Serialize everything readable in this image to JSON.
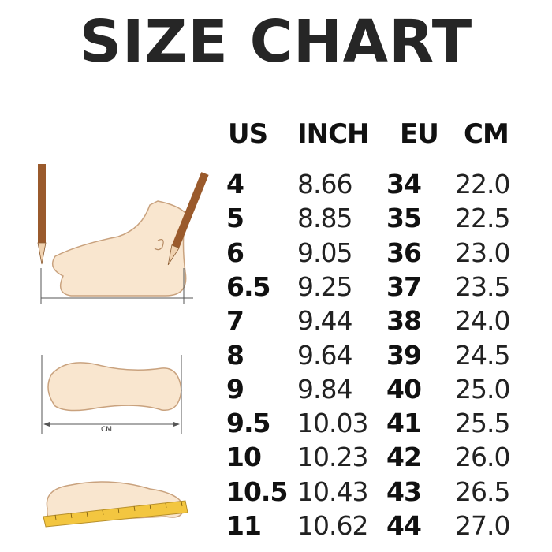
{
  "title": "SIZE CHART",
  "columns": [
    "US",
    "INCH",
    "EU",
    "CM"
  ],
  "rows": [
    [
      "4",
      "8.66",
      "34",
      "22.0"
    ],
    [
      "5",
      "8.85",
      "35",
      "22.5"
    ],
    [
      "6",
      "9.05",
      "36",
      "23.0"
    ],
    [
      "6.5",
      "9.25",
      "37",
      "23.5"
    ],
    [
      "7",
      "9.44",
      "38",
      "24.0"
    ],
    [
      "8",
      "9.64",
      "39",
      "24.5"
    ],
    [
      "9",
      "9.84",
      "40",
      "25.0"
    ],
    [
      "9.5",
      "10.03",
      "41",
      "25.5"
    ],
    [
      "10",
      "10.23",
      "42",
      "26.0"
    ],
    [
      "10.5",
      "10.43",
      "43",
      "26.5"
    ],
    [
      "11",
      "10.62",
      "44",
      "27.0"
    ]
  ],
  "illustrations": {
    "sole_measure_label": "CM",
    "colors": {
      "skin": "#f9e6cf",
      "outline": "#c9a27e",
      "pencil": "#9a5a2c",
      "ruler": "#f3c640"
    }
  }
}
